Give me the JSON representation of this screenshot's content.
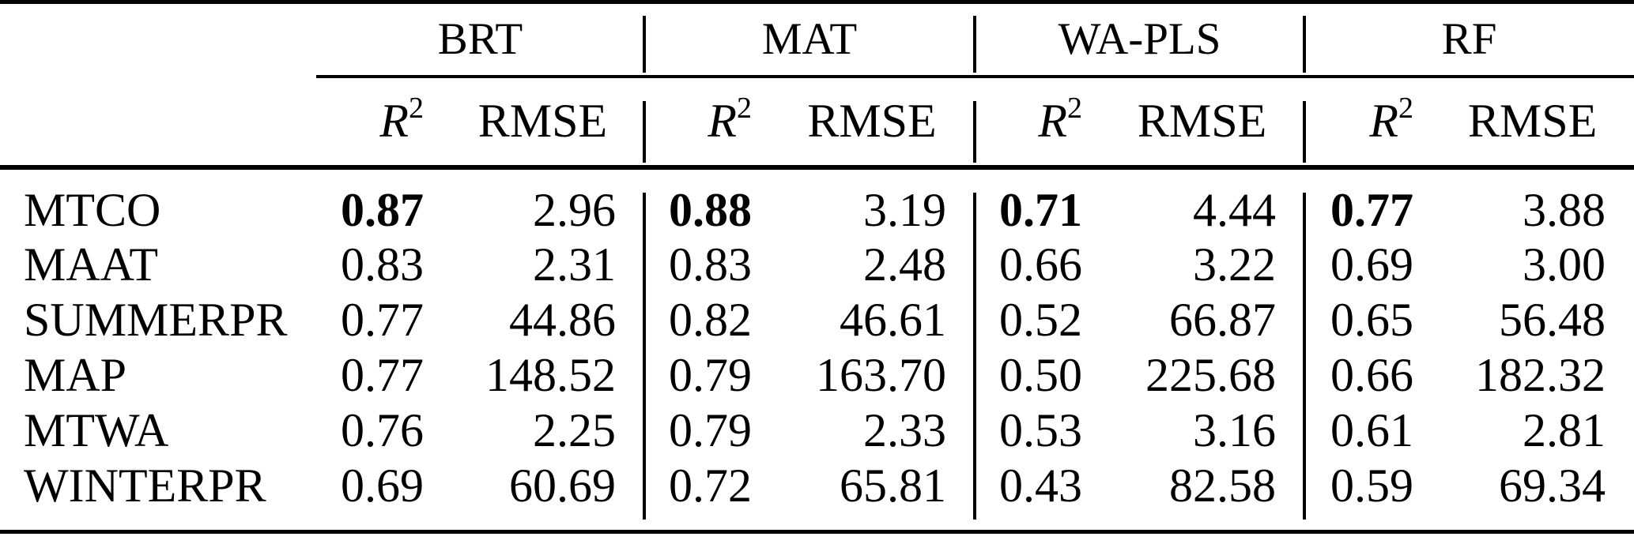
{
  "colors": {
    "background": "#ffffff",
    "text": "#000000",
    "rule": "#000000"
  },
  "table": {
    "groups": [
      {
        "name": "BRT"
      },
      {
        "name": "MAT"
      },
      {
        "name": "WA-PLS"
      },
      {
        "name": "RF"
      }
    ],
    "subheaders": {
      "r2_base": "R",
      "r2_sup": "2",
      "rmse": "RMSE"
    },
    "rows": [
      {
        "label": "MTCO",
        "cells": [
          {
            "value": "0.87",
            "bold": true
          },
          {
            "value": "2.96",
            "bold": false
          },
          {
            "value": "0.88",
            "bold": true
          },
          {
            "value": "3.19",
            "bold": false
          },
          {
            "value": "0.71",
            "bold": true
          },
          {
            "value": "4.44",
            "bold": false
          },
          {
            "value": "0.77",
            "bold": true
          },
          {
            "value": "3.88",
            "bold": false
          }
        ]
      },
      {
        "label": "MAAT",
        "cells": [
          {
            "value": "0.83",
            "bold": false
          },
          {
            "value": "2.31",
            "bold": false
          },
          {
            "value": "0.83",
            "bold": false
          },
          {
            "value": "2.48",
            "bold": false
          },
          {
            "value": "0.66",
            "bold": false
          },
          {
            "value": "3.22",
            "bold": false
          },
          {
            "value": "0.69",
            "bold": false
          },
          {
            "value": "3.00",
            "bold": false
          }
        ]
      },
      {
        "label": "SUMMERPR",
        "cells": [
          {
            "value": "0.77",
            "bold": false
          },
          {
            "value": "44.86",
            "bold": false
          },
          {
            "value": "0.82",
            "bold": false
          },
          {
            "value": "46.61",
            "bold": false
          },
          {
            "value": "0.52",
            "bold": false
          },
          {
            "value": "66.87",
            "bold": false
          },
          {
            "value": "0.65",
            "bold": false
          },
          {
            "value": "56.48",
            "bold": false
          }
        ]
      },
      {
        "label": "MAP",
        "cells": [
          {
            "value": "0.77",
            "bold": false
          },
          {
            "value": "148.52",
            "bold": false
          },
          {
            "value": "0.79",
            "bold": false
          },
          {
            "value": "163.70",
            "bold": false
          },
          {
            "value": "0.50",
            "bold": false
          },
          {
            "value": "225.68",
            "bold": false
          },
          {
            "value": "0.66",
            "bold": false
          },
          {
            "value": "182.32",
            "bold": false
          }
        ]
      },
      {
        "label": "MTWA",
        "cells": [
          {
            "value": "0.76",
            "bold": false
          },
          {
            "value": "2.25",
            "bold": false
          },
          {
            "value": "0.79",
            "bold": false
          },
          {
            "value": "2.33",
            "bold": false
          },
          {
            "value": "0.53",
            "bold": false
          },
          {
            "value": "3.16",
            "bold": false
          },
          {
            "value": "0.61",
            "bold": false
          },
          {
            "value": "2.81",
            "bold": false
          }
        ]
      },
      {
        "label": "WINTERPR",
        "cells": [
          {
            "value": "0.69",
            "bold": false
          },
          {
            "value": "60.69",
            "bold": false
          },
          {
            "value": "0.72",
            "bold": false
          },
          {
            "value": "65.81",
            "bold": false
          },
          {
            "value": "0.43",
            "bold": false
          },
          {
            "value": "82.58",
            "bold": false
          },
          {
            "value": "0.59",
            "bold": false
          },
          {
            "value": "69.34",
            "bold": false
          }
        ]
      }
    ]
  }
}
